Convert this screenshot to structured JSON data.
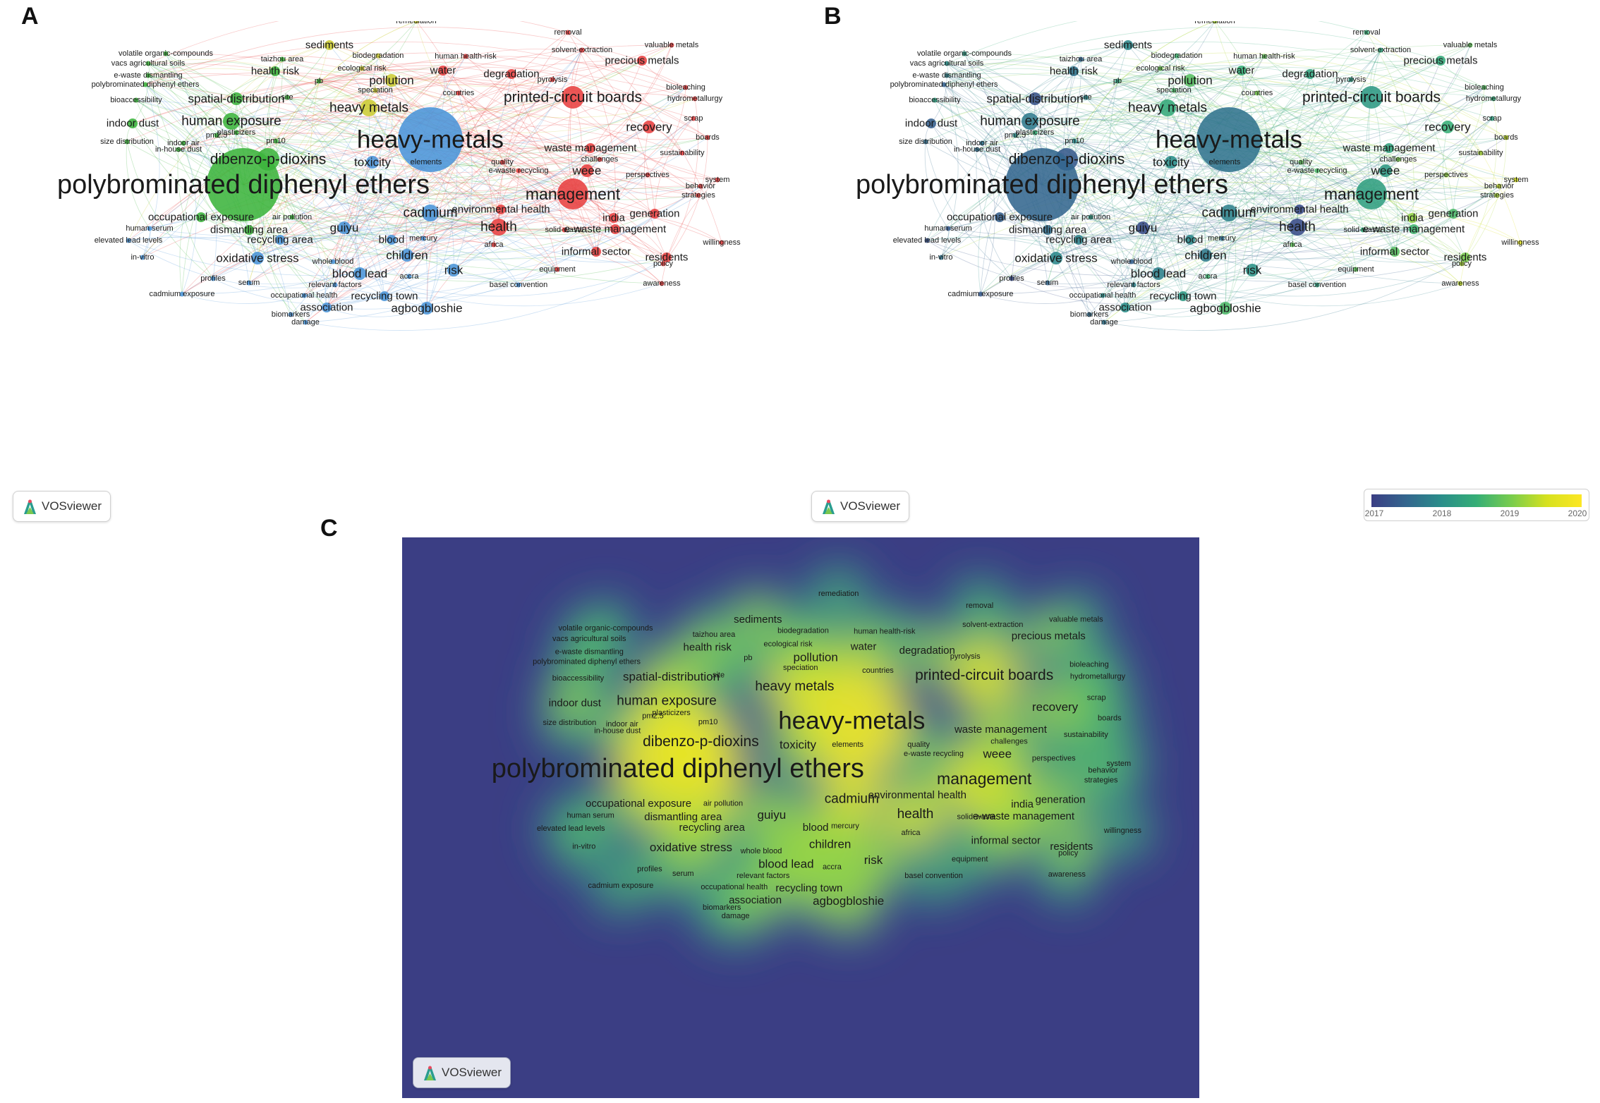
{
  "panels": {
    "a": {
      "letter": "A",
      "badge": "VOSviewer"
    },
    "b": {
      "letter": "B",
      "badge": "VOSviewer"
    },
    "c": {
      "letter": "C",
      "badge": "VOSviewer"
    }
  },
  "legend": {
    "ticks": [
      "2017",
      "2018",
      "2019",
      "2020"
    ]
  },
  "colors": {
    "cluster_green": "#3cb43c",
    "cluster_blue": "#4a94d8",
    "cluster_red": "#e84040",
    "cluster_yellow": "#cccc33",
    "density_low": "#3b3e84",
    "density_high": "#fde725"
  },
  "keywords": [
    {
      "label": "polybrominated diphenyl ethers",
      "cluster": "green",
      "weight": 10,
      "year": 2017.4
    },
    {
      "label": "heavy-metals",
      "cluster": "blue",
      "weight": 9,
      "year": 2017.6
    },
    {
      "label": "management",
      "cluster": "red",
      "weight": 6,
      "year": 2018.3
    },
    {
      "label": "dibenzo-p-dioxins",
      "cluster": "green",
      "weight": 5,
      "year": 2017.2
    },
    {
      "label": "printed-circuit boards",
      "cluster": "red",
      "weight": 5,
      "year": 2018.2
    },
    {
      "label": "cadmium",
      "cluster": "blue",
      "weight": 4,
      "year": 2017.8
    },
    {
      "label": "heavy metals",
      "cluster": "yellow",
      "weight": 4,
      "year": 2018.5
    },
    {
      "label": "human exposure",
      "cluster": "green",
      "weight": 4,
      "year": 2017.7
    },
    {
      "label": "health",
      "cluster": "red",
      "weight": 4,
      "year": 2017.0
    },
    {
      "label": "recovery",
      "cluster": "red",
      "weight": 3,
      "year": 2018.6
    },
    {
      "label": "pollution",
      "cluster": "yellow",
      "weight": 3,
      "year": 2018.9
    },
    {
      "label": "spatial-distribution",
      "cluster": "green",
      "weight": 3,
      "year": 2017.1
    },
    {
      "label": "oxidative stress",
      "cluster": "blue",
      "weight": 3,
      "year": 2017.9
    },
    {
      "label": "children",
      "cluster": "blue",
      "weight": 3,
      "year": 2017.7
    },
    {
      "label": "guiyu",
      "cluster": "blue",
      "weight": 3,
      "year": 2017.0
    },
    {
      "label": "toxicity",
      "cluster": "blue",
      "weight": 3,
      "year": 2018.0
    },
    {
      "label": "blood lead",
      "cluster": "blue",
      "weight": 3,
      "year": 2017.8
    },
    {
      "label": "agbogbloshie",
      "cluster": "blue",
      "weight": 3,
      "year": 2018.8
    },
    {
      "label": "weee",
      "cluster": "red",
      "weight": 3,
      "year": 2018.2
    },
    {
      "label": "risk",
      "cluster": "blue",
      "weight": 3,
      "year": 2018.1
    },
    {
      "label": "indoor dust",
      "cluster": "green",
      "weight": 2,
      "year": 2017.3
    },
    {
      "label": "waste management",
      "cluster": "red",
      "weight": 2,
      "year": 2018.4
    },
    {
      "label": "e-waste management",
      "cluster": "red",
      "weight": 2,
      "year": 2018.7
    },
    {
      "label": "informal sector",
      "cluster": "red",
      "weight": 2,
      "year": 2018.9
    },
    {
      "label": "recycling town",
      "cluster": "blue",
      "weight": 2,
      "year": 2018.2
    },
    {
      "label": "sediments",
      "cluster": "yellow",
      "weight": 2,
      "year": 2017.9
    },
    {
      "label": "precious metals",
      "cluster": "red",
      "weight": 2,
      "year": 2018.5
    },
    {
      "label": "water",
      "cluster": "red",
      "weight": 2,
      "year": 2018.6
    },
    {
      "label": "india",
      "cluster": "red",
      "weight": 2,
      "year": 2019.3
    },
    {
      "label": "generation",
      "cluster": "red",
      "weight": 2,
      "year": 2018.8
    },
    {
      "label": "health risk",
      "cluster": "green",
      "weight": 2,
      "year": 2017.6
    },
    {
      "label": "dismantling area",
      "cluster": "green",
      "weight": 2,
      "year": 2017.5
    },
    {
      "label": "recycling area",
      "cluster": "blue",
      "weight": 2,
      "year": 2017.8
    },
    {
      "label": "blood",
      "cluster": "blue",
      "weight": 2,
      "year": 2017.9
    },
    {
      "label": "association",
      "cluster": "blue",
      "weight": 2,
      "year": 2018.0
    },
    {
      "label": "occupational exposure",
      "cluster": "green",
      "weight": 2,
      "year": 2017.3
    },
    {
      "label": "degradation",
      "cluster": "red",
      "weight": 2,
      "year": 2018.4
    },
    {
      "label": "environmental health",
      "cluster": "red",
      "weight": 2,
      "year": 2017.0
    },
    {
      "label": "residents",
      "cluster": "red",
      "weight": 2,
      "year": 2019.2
    },
    {
      "label": "equipment",
      "cluster": "red",
      "weight": 1,
      "year": 2019.0
    },
    {
      "label": "relevant factors",
      "cluster": "blue",
      "weight": 1,
      "year": 2017.8
    },
    {
      "label": "volatile organic-compounds",
      "cluster": "green",
      "weight": 1,
      "year": 2018.2
    },
    {
      "label": "vacs agricultural soils",
      "cluster": "green",
      "weight": 1,
      "year": 2018.0
    },
    {
      "label": "e-waste dismantling",
      "cluster": "green",
      "weight": 1,
      "year": 2017.8
    },
    {
      "label": "polybrominated diphenyl ethers",
      "cluster": "green",
      "weight": 1,
      "year": 2017.3
    },
    {
      "label": "bioaccessibility",
      "cluster": "green",
      "weight": 1,
      "year": 2018.3
    },
    {
      "label": "size distribution",
      "cluster": "green",
      "weight": 1,
      "year": 2017.5
    },
    {
      "label": "in-house dust",
      "cluster": "green",
      "weight": 1,
      "year": 2017.5
    },
    {
      "label": "indoor air",
      "cluster": "green",
      "weight": 1,
      "year": 2017.6
    },
    {
      "label": "pm2.5",
      "cluster": "green",
      "weight": 1,
      "year": 2018.0
    },
    {
      "label": "plasticizers",
      "cluster": "green",
      "weight": 1,
      "year": 2018.6
    },
    {
      "label": "pm10",
      "cluster": "green",
      "weight": 1,
      "year": 2017.9
    },
    {
      "label": "site",
      "cluster": "green",
      "weight": 1,
      "year": 2017.9
    },
    {
      "label": "pb",
      "cluster": "green",
      "weight": 1,
      "year": 2018.3
    },
    {
      "label": "taizhou area",
      "cluster": "green",
      "weight": 1,
      "year": 2017.4
    },
    {
      "label": "ecological risk",
      "cluster": "yellow",
      "weight": 1,
      "year": 2019.1
    },
    {
      "label": "biodegradation",
      "cluster": "yellow",
      "weight": 1,
      "year": 2018.7
    },
    {
      "label": "remediation",
      "cluster": "yellow",
      "weight": 1,
      "year": 2019.4
    },
    {
      "label": "speciation",
      "cluster": "yellow",
      "weight": 1,
      "year": 2018.8
    },
    {
      "label": "human health-risk",
      "cluster": "red",
      "weight": 1,
      "year": 2019.0
    },
    {
      "label": "countries",
      "cluster": "red",
      "weight": 1,
      "year": 2019.2
    },
    {
      "label": "removal",
      "cluster": "red",
      "weight": 1,
      "year": 2018.6
    },
    {
      "label": "valuable metals",
      "cluster": "red",
      "weight": 1,
      "year": 2019.0
    },
    {
      "label": "solvent-extraction",
      "cluster": "red",
      "weight": 1,
      "year": 2018.4
    },
    {
      "label": "pyrolysis",
      "cluster": "red",
      "weight": 1,
      "year": 2018.2
    },
    {
      "label": "bioleaching",
      "cluster": "red",
      "weight": 1,
      "year": 2018.9
    },
    {
      "label": "hydrometallurgy",
      "cluster": "red",
      "weight": 1,
      "year": 2018.5
    },
    {
      "label": "scrap",
      "cluster": "red",
      "weight": 1,
      "year": 2018.3
    },
    {
      "label": "boards",
      "cluster": "red",
      "weight": 1,
      "year": 2019.5
    },
    {
      "label": "sustainability",
      "cluster": "red",
      "weight": 1,
      "year": 2019.4
    },
    {
      "label": "challenges",
      "cluster": "red",
      "weight": 1,
      "year": 2019.2
    },
    {
      "label": "quality",
      "cluster": "red",
      "weight": 1,
      "year": 2019.0
    },
    {
      "label": "e-waste recycling",
      "cluster": "red",
      "weight": 1,
      "year": 2018.8
    },
    {
      "label": "perspectives",
      "cluster": "red",
      "weight": 1,
      "year": 2019.3
    },
    {
      "label": "system",
      "cluster": "red",
      "weight": 1,
      "year": 2019.6
    },
    {
      "label": "behavior",
      "cluster": "red",
      "weight": 1,
      "year": 2019.5
    },
    {
      "label": "strategies",
      "cluster": "red",
      "weight": 1,
      "year": 2019.4
    },
    {
      "label": "solid-waste",
      "cluster": "red",
      "weight": 1,
      "year": 2018.5
    },
    {
      "label": "willingness",
      "cluster": "red",
      "weight": 1,
      "year": 2019.7
    },
    {
      "label": "africa",
      "cluster": "red",
      "weight": 1,
      "year": 2019.0
    },
    {
      "label": "policy",
      "cluster": "red",
      "weight": 1,
      "year": 2019.4
    },
    {
      "label": "awareness",
      "cluster": "red",
      "weight": 1,
      "year": 2019.5
    },
    {
      "label": "basel convention",
      "cluster": "blue",
      "weight": 1,
      "year": 2018.3
    },
    {
      "label": "mercury",
      "cluster": "blue",
      "weight": 1,
      "year": 2017.5
    },
    {
      "label": "elements",
      "cluster": "blue",
      "weight": 1,
      "year": 2017.6
    },
    {
      "label": "air pollution",
      "cluster": "green",
      "weight": 1,
      "year": 2018.2
    },
    {
      "label": "human serum",
      "cluster": "blue",
      "weight": 1,
      "year": 2017.2
    },
    {
      "label": "elevated lead levels",
      "cluster": "blue",
      "weight": 1,
      "year": 2017.1
    },
    {
      "label": "in-vitro",
      "cluster": "blue",
      "weight": 1,
      "year": 2017.6
    },
    {
      "label": "whole blood",
      "cluster": "blue",
      "weight": 1,
      "year": 2017.3
    },
    {
      "label": "accra",
      "cluster": "blue",
      "weight": 1,
      "year": 2018.7
    },
    {
      "label": "profiles",
      "cluster": "blue",
      "weight": 1,
      "year": 2017.0
    },
    {
      "label": "serum",
      "cluster": "blue",
      "weight": 1,
      "year": 2017.4
    },
    {
      "label": "cadmium exposure",
      "cluster": "blue",
      "weight": 1,
      "year": 2017.2
    },
    {
      "label": "occupational health",
      "cluster": "blue",
      "weight": 1,
      "year": 2018.0
    },
    {
      "label": "biomarkers",
      "cluster": "blue",
      "weight": 1,
      "year": 2017.5
    },
    {
      "label": "damage",
      "cluster": "blue",
      "weight": 1,
      "year": 2017.6
    }
  ]
}
